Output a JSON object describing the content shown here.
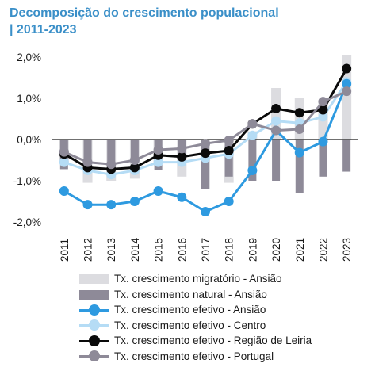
{
  "title": {
    "line1": "Decomposição do crescimento populacional",
    "line2": "| 2011-2023"
  },
  "chart_data": {
    "type": "bar+line",
    "categories": [
      "2011",
      "2012",
      "2013",
      "2014",
      "2015",
      "2016",
      "2017",
      "2018",
      "2019",
      "2020",
      "2021",
      "2022",
      "2023"
    ],
    "ylim": [
      -2.0,
      2.0
    ],
    "yticks": [
      "-2,0%",
      "-1,0%",
      "0,0%",
      "1,0%",
      "2,0%"
    ],
    "ytick_values": [
      -2.0,
      -1.0,
      0.0,
      1.0,
      2.0
    ],
    "grid": false,
    "legend_position": "bottom",
    "bars": [
      {
        "name": "Tx. crescimento migratório - Ansião",
        "color": "#dcdce0",
        "values": [
          -0.55,
          -1.05,
          -1.0,
          -0.95,
          -0.55,
          -0.9,
          -1.2,
          -1.05,
          0.2,
          1.25,
          1.0,
          0.95,
          2.05
        ]
      },
      {
        "name": "Tx. crescimento natural - Ansião",
        "color": "#8e8a98",
        "values": [
          -0.72,
          -0.55,
          -0.6,
          -0.55,
          -0.75,
          -0.6,
          -1.2,
          -0.9,
          -1.0,
          -1.0,
          -1.3,
          -0.9,
          -0.78
        ]
      }
    ],
    "series": [
      {
        "name": "Tx. crescimento efetivo - Ansião",
        "color": "#2e9ae0",
        "values": [
          -1.25,
          -1.58,
          -1.58,
          -1.5,
          -1.25,
          -1.4,
          -1.75,
          -1.5,
          -0.75,
          0.22,
          -0.32,
          -0.05,
          1.35
        ]
      },
      {
        "name": "Tx. crescimento efetivo - Centro",
        "color": "#b5dcf5",
        "values": [
          -0.55,
          -0.75,
          -0.85,
          -0.75,
          -0.55,
          -0.55,
          -0.45,
          -0.35,
          0.1,
          0.45,
          0.4,
          0.55,
          1.4
        ]
      },
      {
        "name": "Tx. crescimento efetivo - Região de Leiria",
        "color": "#0a0a0a",
        "values": [
          -0.35,
          -0.68,
          -0.72,
          -0.68,
          -0.38,
          -0.42,
          -0.33,
          -0.27,
          0.38,
          0.75,
          0.65,
          0.72,
          1.72
        ]
      },
      {
        "name": "Tx. crescimento efetivo - Portugal",
        "color": "#8e8a98",
        "values": [
          -0.3,
          -0.55,
          -0.6,
          -0.5,
          -0.25,
          -0.22,
          -0.1,
          -0.02,
          0.38,
          0.22,
          0.25,
          0.92,
          1.17
        ]
      }
    ]
  }
}
